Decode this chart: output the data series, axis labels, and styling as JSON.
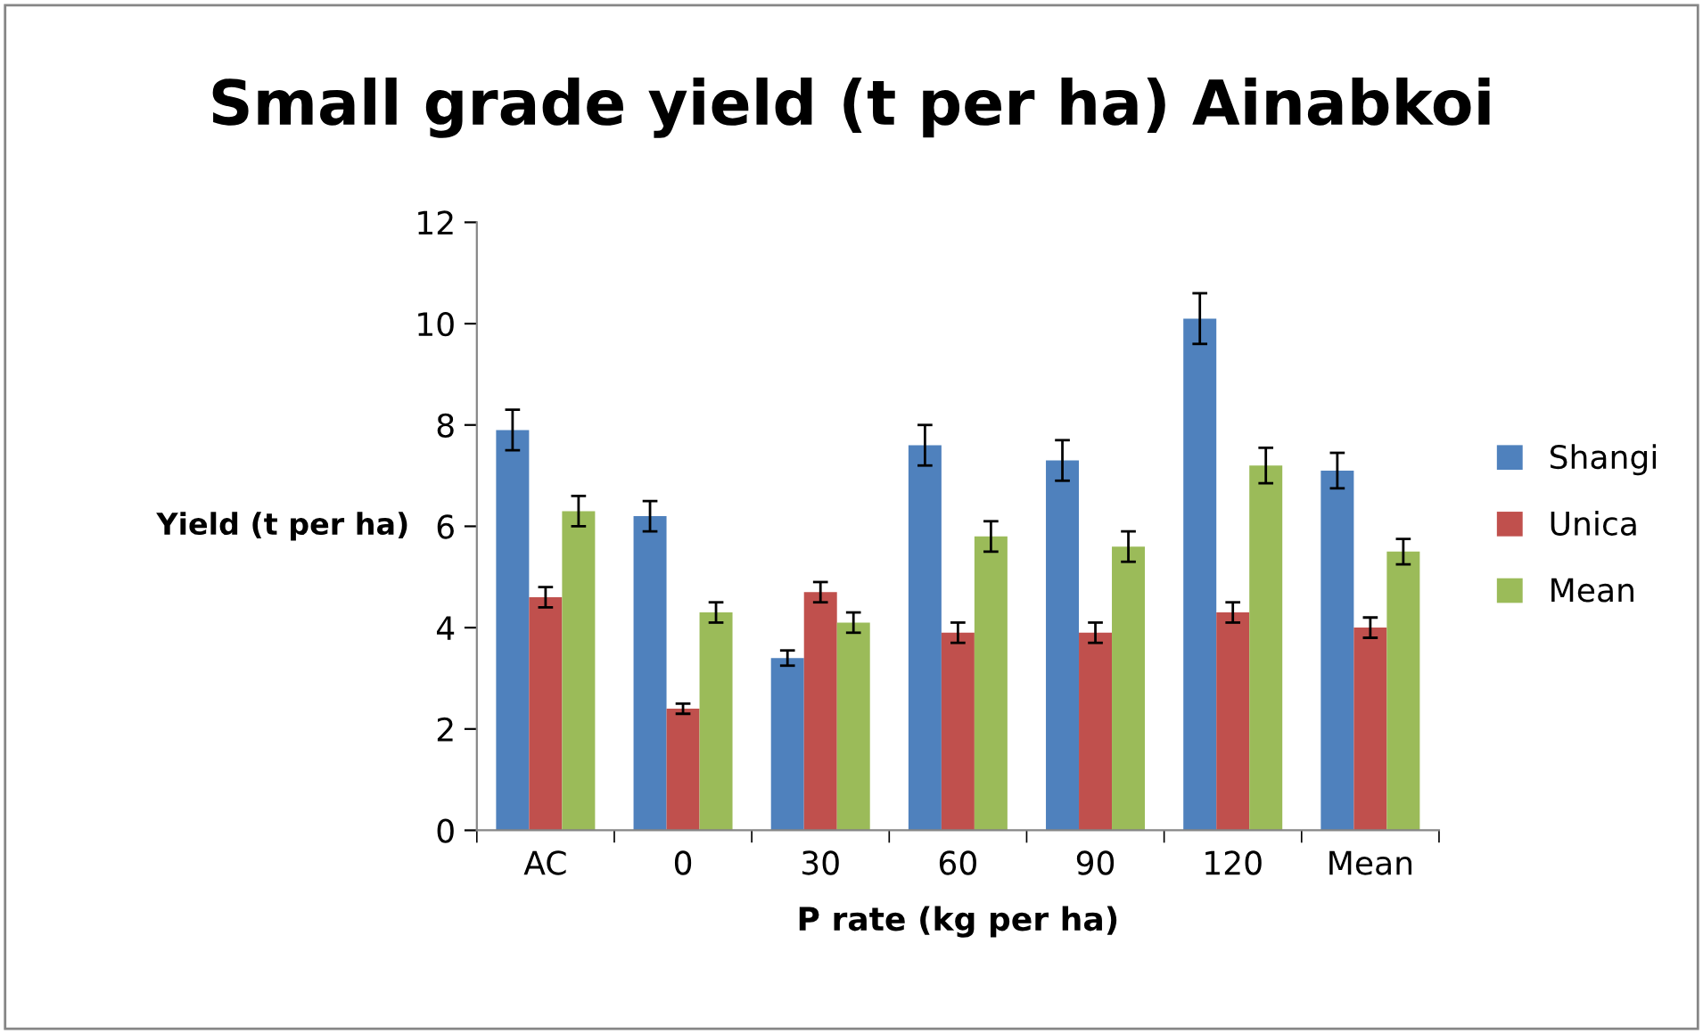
{
  "chart_data": {
    "type": "bar",
    "title": "Small grade yield (t per ha) Ainabkoi",
    "xlabel": "P rate (kg per ha)",
    "ylabel": "Yield (t per ha)",
    "categories": [
      "AC",
      "0",
      "30",
      "60",
      "90",
      "120",
      "Mean"
    ],
    "series": [
      {
        "name": "Shangi",
        "color": "#4f81bd",
        "values": [
          7.9,
          6.2,
          3.4,
          7.6,
          7.3,
          10.1,
          7.1
        ],
        "errors": [
          0.4,
          0.3,
          0.15,
          0.4,
          0.4,
          0.5,
          0.35
        ]
      },
      {
        "name": "Unica",
        "color": "#c0504d",
        "values": [
          4.6,
          2.4,
          4.7,
          3.9,
          3.9,
          4.3,
          4.0
        ],
        "errors": [
          0.2,
          0.1,
          0.2,
          0.2,
          0.2,
          0.2,
          0.2
        ]
      },
      {
        "name": "Mean",
        "color": "#9bbb59",
        "values": [
          6.3,
          4.3,
          4.1,
          5.8,
          5.6,
          7.2,
          5.5
        ],
        "errors": [
          0.3,
          0.2,
          0.2,
          0.3,
          0.3,
          0.35,
          0.25
        ]
      }
    ],
    "ylim": [
      0,
      12
    ],
    "yticks": [
      0,
      2,
      4,
      6,
      8,
      10,
      12
    ],
    "grid": false,
    "legend": "right"
  }
}
